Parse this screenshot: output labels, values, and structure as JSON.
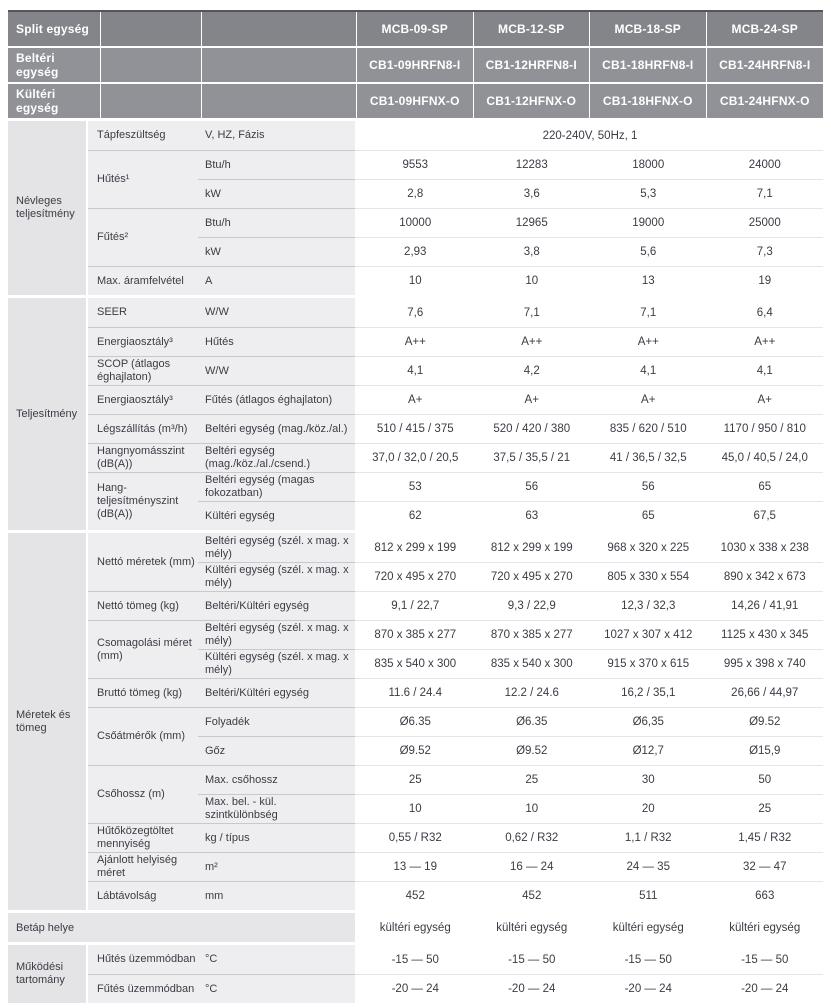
{
  "colors": {
    "header_row1_bg": "#84858a",
    "header_row23_bg": "#919298",
    "category_column_bg": "#e4e4e7",
    "label_columns_bg": "#eeeef0",
    "data_bg": "#ffffff",
    "text": "#3b3b45",
    "header_text": "#ffffff"
  },
  "header": [
    {
      "label": "Split egység",
      "v": [
        "MCB-09-SP",
        "MCB-12-SP",
        "MCB-18-SP",
        "MCB-24-SP"
      ]
    },
    {
      "label": "Beltéri egység",
      "v": [
        "CB1-09HRFN8-I",
        "CB1-12HRFN8-I",
        "CB1-18HRFN8-I",
        "CB1-24HRFN8-I"
      ]
    },
    {
      "label": "Kültéri egység",
      "v": [
        "CB1-09HFNX-O",
        "CB1-12HFNX-O",
        "CB1-18HFNX-O",
        "CB1-24HFNX-O"
      ]
    }
  ],
  "s1": {
    "cat": "Névleges teljesítmény",
    "rows": [
      {
        "b": "Tápfeszültség",
        "c": "V, HZ, Fázis",
        "v": "220-240V, 50Hz, 1"
      },
      {
        "b": "Hűtés¹",
        "c": "Btu/h",
        "v": [
          "9553",
          "12283",
          "18000",
          "24000"
        ]
      },
      {
        "c": "kW",
        "v": [
          "2,8",
          "3,6",
          "5,3",
          "7,1"
        ]
      },
      {
        "b": "Fűtés²",
        "c": "Btu/h",
        "v": [
          "10000",
          "12965",
          "19000",
          "25000"
        ]
      },
      {
        "c": "kW",
        "v": [
          "2,93",
          "3,8",
          "5,6",
          "7,3"
        ]
      },
      {
        "b": "Max. áramfelvétel",
        "c": "A",
        "v": [
          "10",
          "10",
          "13",
          "19"
        ]
      }
    ]
  },
  "s2": {
    "cat": "Teljesítmény",
    "rows": [
      {
        "b": "SEER",
        "c": "W/W",
        "v": [
          "7,6",
          "7,1",
          "7,1",
          "6,4"
        ]
      },
      {
        "b": "Energiaosztály³",
        "c": "Hűtés",
        "v": [
          "A++",
          "A++",
          "A++",
          "A++"
        ]
      },
      {
        "b": "SCOP (átlagos éghajlaton)",
        "c": "W/W",
        "v": [
          "4,1",
          "4,2",
          "4,1",
          "4,1"
        ]
      },
      {
        "b": "Energiaosztály³",
        "c": "Fűtés (átlagos éghajlaton)",
        "v": [
          "A+",
          "A+",
          "A+",
          "A+"
        ]
      },
      {
        "b": "Légszállítás (m³/h)",
        "c": "Beltéri egység (mag./köz./al.)",
        "v": [
          "510 / 415 / 375",
          "520 / 420 / 380",
          "835 / 620 / 510",
          "1170 / 950 / 810"
        ]
      },
      {
        "b": "Hangnyomásszint (dB(A))",
        "c": "Beltéri egység (mag./köz./al./csend.)",
        "v": [
          "37,0 / 32,0 / 20,5",
          "37,5 / 35,5 / 21",
          "41 / 36,5 / 32,5",
          "45,0 / 40,5 / 24,0"
        ]
      },
      {
        "b": "Hang-teljesítményszint (dB(A))",
        "c": "Beltéri egység (magas fokozatban)",
        "v": [
          "53",
          "56",
          "56",
          "65"
        ]
      },
      {
        "c": "Kültéri egység",
        "v": [
          "62",
          "63",
          "65",
          "67,5"
        ]
      }
    ]
  },
  "s3": {
    "cat": "Méretek és tömeg",
    "rows": [
      {
        "b": "Nettó méretek (mm)",
        "c": "Beltéri egység (szél. x mag. x mély)",
        "v": [
          "812 x 299 x 199",
          "812 x 299 x 199",
          "968 x 320 x 225",
          "1030 x 338 x 238"
        ]
      },
      {
        "c": "Kültéri egység (szél. x mag. x mély)",
        "v": [
          "720 x 495 x 270",
          "720 x 495 x 270",
          "805 x 330 x 554",
          "890 x 342 x 673"
        ]
      },
      {
        "b": "Nettó tömeg (kg)",
        "c": "Beltéri/Kültéri egység",
        "v": [
          "9,1 / 22,7",
          "9,3 / 22,9",
          "12,3 / 32,3",
          "14,26 / 41,91"
        ]
      },
      {
        "b": "Csomagolási méret (mm)",
        "c": "Beltéri egység (szél. x mag. x mély)",
        "v": [
          "870 x 385 x 277",
          "870 x 385 x 277",
          "1027 x 307 x 412",
          "1125 x 430 x 345"
        ]
      },
      {
        "c": "Kültéri egység (szél. x mag. x mély)",
        "v": [
          "835 x 540 x 300",
          "835 x 540 x 300",
          "915 x 370 x 615",
          "995 x 398 x 740"
        ]
      },
      {
        "b": "Bruttó tömeg (kg)",
        "c": "Beltéri/Kültéri egység",
        "v": [
          "11.6 / 24.4",
          "12.2 / 24.6",
          "16,2 / 35,1",
          "26,66 / 44,97"
        ]
      },
      {
        "b": "Csőátmérők (mm)",
        "c": "Folyadék",
        "v": [
          "Ø6.35",
          "Ø6.35",
          "Ø6,35",
          "Ø9.52"
        ]
      },
      {
        "c": "Gőz",
        "v": [
          "Ø9.52",
          "Ø9.52",
          "Ø12,7",
          "Ø15,9"
        ]
      },
      {
        "b": "Csőhossz (m)",
        "c": "Max. csőhossz",
        "v": [
          "25",
          "25",
          "30",
          "50"
        ]
      },
      {
        "c": "Max. bel. - kül. szintkülönbség",
        "v": [
          "10",
          "10",
          "20",
          "25"
        ]
      },
      {
        "b": "Hűtőközegtöltet mennyiség",
        "c": "kg / típus",
        "v": [
          "0,55 / R32",
          "0,62 / R32",
          "1,1 / R32",
          "1,45 / R32"
        ]
      },
      {
        "b": "Ajánlott helyiség méret",
        "c": "m²",
        "v": [
          "13 — 19",
          "16 — 24",
          "24 — 35",
          "32 — 47"
        ]
      },
      {
        "b": "Lábtávolság",
        "c": "mm",
        "v": [
          "452",
          "452",
          "511",
          "663"
        ]
      }
    ]
  },
  "s4": {
    "label": "Betáp helye",
    "v": [
      "kültéri egység",
      "kültéri egység",
      "kültéri egység",
      "kültéri egység"
    ]
  },
  "s5": {
    "cat": "Működési tartomány",
    "rows": [
      {
        "b": "Hűtés üzemmódban",
        "c": "°C",
        "v": [
          "-15 — 50",
          "-15 — 50",
          "-15 — 50",
          "-15 — 50"
        ]
      },
      {
        "b": "Fűtés üzemmódban",
        "c": "°C",
        "v": [
          "-20 — 24",
          "-20 — 24",
          "-20 — 24",
          "-20 — 24"
        ]
      }
    ]
  }
}
